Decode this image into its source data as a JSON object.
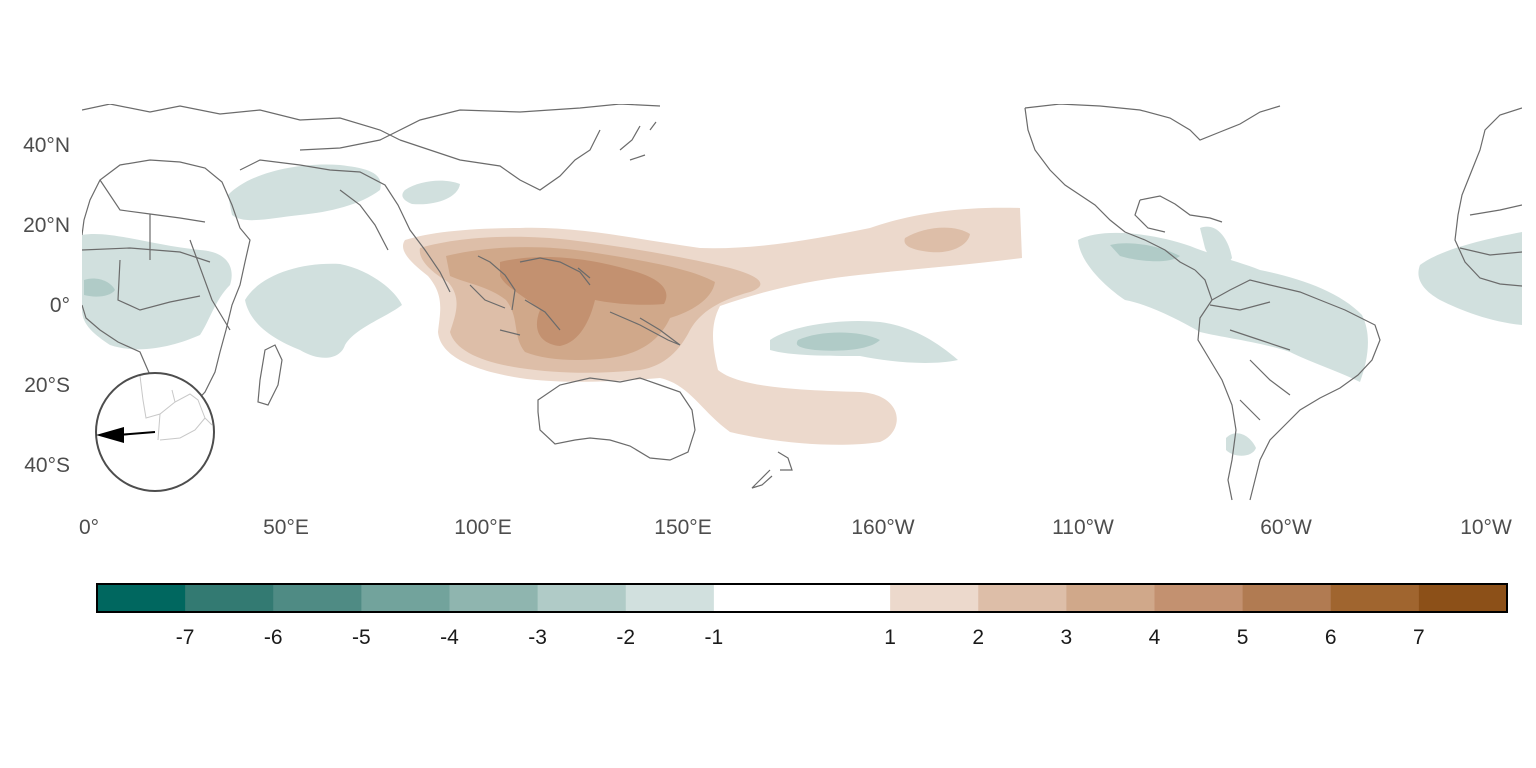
{
  "map": {
    "lat_labels": [
      "40°N",
      "20°N",
      "0°",
      "20°S",
      "40°S"
    ],
    "lon_labels": [
      "0°",
      "50°E",
      "100°E",
      "150°E",
      "160°W",
      "110°W",
      "60°W",
      "10°W"
    ],
    "coastline_color": "#6b6b6b",
    "anomaly_field": "diverging brown (positive) / teal (negative) filled contours over tropical Indo-Pacific, Americas and Africa"
  },
  "inset": {
    "icon": "arrow-left-icon",
    "arrow_direction": "west"
  },
  "colorbar": {
    "tick_labels": [
      "-7",
      "-6",
      "-5",
      "-4",
      "-3",
      "-2",
      "-1",
      "1",
      "2",
      "3",
      "4",
      "5",
      "6",
      "7"
    ],
    "colors": [
      "#00675f",
      "#337a72",
      "#4f8b84",
      "#72a39c",
      "#8fb5af",
      "#b0cbc7",
      "#d1e0de",
      "#ffffff",
      "#ffffff",
      "#ecd9cc",
      "#ddbea8",
      "#d0a88a",
      "#c39170",
      "#b17b52",
      "#a0652f",
      "#8c5018"
    ]
  }
}
